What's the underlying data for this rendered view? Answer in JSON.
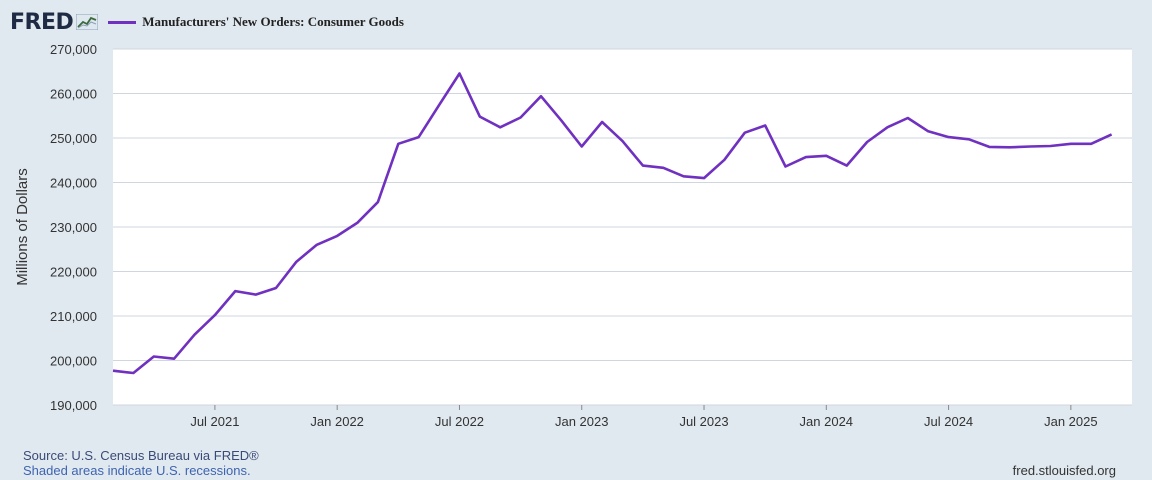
{
  "header": {
    "logo_text": "FRED",
    "series_label": "Manufacturers' New Orders: Consumer Goods"
  },
  "footer": {
    "source": "Source: U.S. Census Bureau via FRED®",
    "shaded_note": "Shaded areas indicate U.S. recessions.",
    "site": "fred.stlouisfed.org"
  },
  "colors": {
    "line": "#7030c0",
    "background": "#e1e9f0",
    "plot_background": "#ffffff",
    "gridline": "#cfd6dd"
  },
  "chart_data": {
    "type": "line",
    "title": "",
    "xlabel": "",
    "ylabel": "Millions of Dollars",
    "ylim": [
      190000,
      270000
    ],
    "xlim": [
      "2021-02",
      "2025-04"
    ],
    "yticks": [
      190000,
      200000,
      210000,
      220000,
      230000,
      240000,
      250000,
      260000,
      270000
    ],
    "ytick_labels": [
      "190,000",
      "200,000",
      "210,000",
      "220,000",
      "230,000",
      "240,000",
      "250,000",
      "260,000",
      "270,000"
    ],
    "xticks": [
      "2021-07",
      "2022-01",
      "2022-07",
      "2023-01",
      "2023-07",
      "2024-01",
      "2024-07",
      "2025-01"
    ],
    "xtick_labels": [
      "Jul 2021",
      "Jan 2022",
      "Jul 2022",
      "Jan 2023",
      "Jul 2023",
      "Jan 2024",
      "Jul 2024",
      "Jan 2025"
    ],
    "grid": true,
    "series": [
      {
        "color": "#7030c0",
        "x": [
          "2021-02",
          "2021-03",
          "2021-04",
          "2021-05",
          "2021-06",
          "2021-07",
          "2021-08",
          "2021-09",
          "2021-10",
          "2021-11",
          "2021-12",
          "2022-01",
          "2022-02",
          "2022-03",
          "2022-04",
          "2022-05",
          "2022-06",
          "2022-07",
          "2022-08",
          "2022-09",
          "2022-10",
          "2022-11",
          "2022-12",
          "2023-01",
          "2023-02",
          "2023-03",
          "2023-04",
          "2023-05",
          "2023-06",
          "2023-07",
          "2023-08",
          "2023-09",
          "2023-10",
          "2023-11",
          "2023-12",
          "2024-01",
          "2024-02",
          "2024-03",
          "2024-04",
          "2024-05",
          "2024-06",
          "2024-07",
          "2024-08",
          "2024-09",
          "2024-10",
          "2024-11",
          "2024-12",
          "2025-01",
          "2025-02",
          "2025-03"
        ],
        "values": [
          197700,
          197200,
          200900,
          200400,
          205800,
          210200,
          215600,
          214800,
          216300,
          222200,
          226000,
          228000,
          231000,
          235600,
          248700,
          250200,
          257400,
          264500,
          254800,
          252400,
          254600,
          259400,
          253900,
          248100,
          253600,
          249300,
          243800,
          243300,
          241400,
          241000,
          245100,
          251200,
          252800,
          243600,
          245700,
          246000,
          243800,
          249100,
          252400,
          254500,
          251500,
          250200,
          249700,
          248000,
          247900,
          248100,
          248200,
          248700,
          248700,
          250800
        ]
      }
    ]
  }
}
